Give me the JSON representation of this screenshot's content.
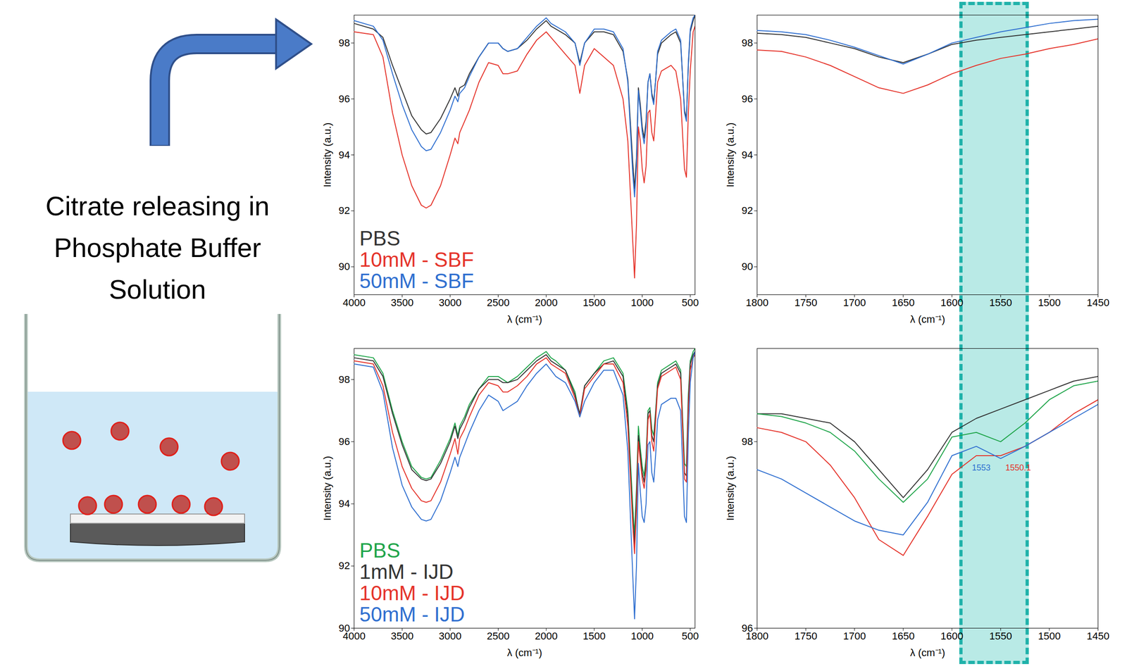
{
  "diagram": {
    "text": "Citrate releasing in Phosphate Buffer Solution"
  },
  "highlight_band": {
    "from": 1590,
    "to": 1525
  },
  "chart_data": [
    {
      "type": "line",
      "x_label": "λ (cm⁻¹)",
      "y_label": "Intensity (a.u.)",
      "xlim": [
        4000,
        450
      ],
      "xticks": [
        4000,
        3500,
        3000,
        2500,
        2000,
        1500,
        1000,
        500
      ],
      "ylim": [
        89,
        99
      ],
      "yticks": [
        90,
        92,
        94,
        96,
        98
      ],
      "legend": "bottom-left",
      "x": [
        4000,
        3800,
        3700,
        3600,
        3500,
        3400,
        3300,
        3250,
        3200,
        3100,
        3000,
        2950,
        2920,
        2900,
        2850,
        2800,
        2700,
        2600,
        2500,
        2450,
        2400,
        2300,
        2200,
        2100,
        2000,
        1950,
        1900,
        1800,
        1700,
        1650,
        1600,
        1500,
        1400,
        1300,
        1200,
        1150,
        1100,
        1080,
        1060,
        1040,
        1020,
        1000,
        980,
        960,
        940,
        920,
        900,
        880,
        860,
        840,
        800,
        700,
        650,
        600,
        560,
        540,
        520,
        500,
        470,
        450
      ],
      "series": [
        {
          "name": "PBS",
          "color": "#333333",
          "values": [
            98.7,
            98.5,
            98.2,
            97.2,
            96.3,
            95.4,
            94.9,
            94.75,
            94.8,
            95.3,
            96.0,
            96.4,
            96.1,
            96.4,
            96.5,
            96.9,
            97.5,
            98.0,
            98.0,
            97.8,
            97.7,
            97.8,
            98.1,
            98.5,
            98.8,
            98.6,
            98.5,
            98.3,
            98.0,
            97.3,
            98.0,
            98.4,
            98.4,
            98.3,
            97.7,
            96.7,
            93.8,
            92.8,
            93.9,
            96.4,
            95.8,
            95.0,
            94.6,
            95.2,
            96.6,
            96.9,
            96.2,
            95.9,
            96.7,
            97.6,
            98.0,
            98.3,
            98.4,
            98.0,
            95.6,
            95.3,
            97.2,
            98.4,
            98.8,
            99.0
          ]
        },
        {
          "name": "10mM - SBF",
          "color": "#e5332a",
          "values": [
            98.4,
            98.3,
            97.5,
            95.5,
            94.0,
            92.9,
            92.2,
            92.1,
            92.2,
            92.9,
            94.0,
            94.6,
            94.4,
            94.8,
            95.2,
            95.6,
            96.6,
            97.3,
            97.2,
            96.9,
            96.9,
            97.0,
            97.6,
            98.1,
            98.4,
            98.2,
            98.0,
            97.6,
            97.2,
            96.2,
            97.2,
            97.8,
            97.5,
            97.2,
            96.0,
            94.5,
            91.0,
            89.6,
            91.5,
            95.0,
            94.5,
            93.5,
            93.0,
            93.6,
            95.5,
            95.6,
            94.8,
            94.5,
            95.5,
            96.6,
            97.0,
            97.2,
            97.0,
            96.0,
            93.5,
            93.2,
            95.5,
            97.0,
            98.4,
            98.6
          ]
        },
        {
          "name": "50mM - SBF",
          "color": "#2f6fd0",
          "values": [
            98.8,
            98.6,
            98.1,
            96.9,
            95.8,
            94.9,
            94.3,
            94.15,
            94.2,
            94.8,
            95.6,
            96.1,
            95.9,
            96.2,
            96.4,
            96.8,
            97.5,
            98.0,
            98.0,
            97.8,
            97.7,
            97.8,
            98.2,
            98.6,
            98.9,
            98.7,
            98.6,
            98.4,
            98.0,
            97.2,
            98.0,
            98.5,
            98.5,
            98.4,
            97.8,
            96.6,
            93.4,
            92.5,
            93.6,
            96.3,
            95.6,
            94.8,
            94.4,
            95.0,
            96.6,
            96.9,
            96.1,
            95.8,
            96.7,
            97.7,
            98.1,
            98.4,
            98.5,
            98.1,
            95.5,
            95.2,
            97.3,
            98.5,
            98.9,
            99.0
          ]
        }
      ]
    },
    {
      "type": "line",
      "x_label": "λ (cm⁻¹)",
      "y_label": "Intensity (a.u.)",
      "xlim": [
        1800,
        1450
      ],
      "xticks": [
        1800,
        1750,
        1700,
        1650,
        1600,
        1550,
        1500,
        1450
      ],
      "ylim": [
        89,
        99
      ],
      "yticks": [
        90,
        92,
        94,
        96,
        98
      ],
      "x": [
        1800,
        1775,
        1750,
        1725,
        1700,
        1675,
        1650,
        1625,
        1600,
        1575,
        1550,
        1525,
        1500,
        1475,
        1450
      ],
      "series": [
        {
          "color": "#333333",
          "values": [
            98.35,
            98.3,
            98.2,
            98.0,
            97.8,
            97.5,
            97.3,
            97.6,
            97.95,
            98.1,
            98.2,
            98.3,
            98.4,
            98.5,
            98.6
          ]
        },
        {
          "color": "#e5332a",
          "values": [
            97.75,
            97.7,
            97.5,
            97.2,
            96.8,
            96.4,
            96.2,
            96.5,
            96.9,
            97.2,
            97.45,
            97.6,
            97.8,
            97.95,
            98.15
          ]
        },
        {
          "color": "#2f6fd0",
          "values": [
            98.45,
            98.4,
            98.3,
            98.1,
            97.85,
            97.55,
            97.25,
            97.6,
            98.0,
            98.2,
            98.4,
            98.55,
            98.7,
            98.8,
            98.85
          ]
        }
      ]
    },
    {
      "type": "line",
      "x_label": "λ (cm⁻¹)",
      "y_label": "Intensity (a.u.)",
      "xlim": [
        4000,
        450
      ],
      "xticks": [
        4000,
        3500,
        3000,
        2500,
        2000,
        1500,
        1000,
        500
      ],
      "ylim": [
        90,
        99
      ],
      "yticks": [
        90,
        92,
        94,
        96,
        98
      ],
      "legend": "bottom-left",
      "x": [
        4000,
        3800,
        3700,
        3600,
        3500,
        3400,
        3300,
        3250,
        3200,
        3100,
        3000,
        2950,
        2920,
        2900,
        2850,
        2800,
        2700,
        2600,
        2500,
        2450,
        2400,
        2300,
        2200,
        2100,
        2000,
        1950,
        1900,
        1800,
        1700,
        1650,
        1600,
        1500,
        1400,
        1300,
        1200,
        1150,
        1100,
        1080,
        1060,
        1040,
        1020,
        1000,
        980,
        960,
        940,
        920,
        900,
        880,
        860,
        840,
        800,
        700,
        650,
        600,
        560,
        540,
        520,
        500,
        470,
        450
      ],
      "series": [
        {
          "name": "PBS",
          "color": "#1fa54a",
          "values": [
            98.8,
            98.7,
            98.2,
            97.0,
            96.0,
            95.2,
            94.85,
            94.8,
            94.85,
            95.4,
            96.1,
            96.6,
            96.2,
            96.5,
            96.8,
            97.2,
            97.7,
            98.1,
            98.1,
            98.0,
            97.9,
            98.1,
            98.4,
            98.7,
            98.9,
            98.7,
            98.6,
            98.3,
            97.6,
            96.8,
            97.8,
            98.2,
            98.6,
            98.7,
            98.2,
            97.0,
            94.0,
            93.0,
            94.5,
            96.5,
            95.8,
            95.2,
            94.9,
            95.5,
            97.0,
            97.1,
            96.4,
            96.2,
            97.0,
            97.9,
            98.3,
            98.5,
            98.6,
            98.3,
            95.3,
            95.2,
            97.5,
            98.6,
            98.9,
            99.0
          ]
        },
        {
          "name": "1mM - IJD",
          "color": "#333333",
          "values": [
            98.7,
            98.6,
            98.1,
            96.9,
            95.9,
            95.1,
            94.8,
            94.75,
            94.8,
            95.3,
            96.0,
            96.5,
            96.1,
            96.4,
            96.7,
            97.1,
            97.7,
            98.0,
            98.0,
            97.9,
            97.9,
            98.0,
            98.3,
            98.6,
            98.8,
            98.6,
            98.5,
            98.3,
            97.5,
            96.9,
            97.8,
            98.2,
            98.5,
            98.6,
            98.1,
            96.8,
            93.6,
            92.7,
            94.2,
            96.2,
            95.6,
            95.0,
            94.7,
            95.3,
            96.9,
            97.0,
            96.2,
            96.0,
            96.9,
            97.8,
            98.2,
            98.4,
            98.5,
            98.2,
            95.0,
            94.9,
            97.3,
            98.5,
            98.8,
            98.9
          ]
        },
        {
          "name": "10mM - IJD",
          "color": "#e5332a",
          "values": [
            98.6,
            98.5,
            97.8,
            96.3,
            95.2,
            94.5,
            94.1,
            94.05,
            94.1,
            94.7,
            95.6,
            96.1,
            95.6,
            96.1,
            96.4,
            96.8,
            97.5,
            97.9,
            97.8,
            97.6,
            97.6,
            97.8,
            98.1,
            98.5,
            98.7,
            98.5,
            98.4,
            98.2,
            97.4,
            96.8,
            97.7,
            98.1,
            98.5,
            98.5,
            97.9,
            96.5,
            93.4,
            92.4,
            93.8,
            96.0,
            95.4,
            94.8,
            94.5,
            95.1,
            96.7,
            96.9,
            96.0,
            95.7,
            96.7,
            97.7,
            98.1,
            98.3,
            98.4,
            98.0,
            94.8,
            94.7,
            97.0,
            98.3,
            98.7,
            98.8
          ]
        },
        {
          "name": "50mM - IJD",
          "color": "#2f6fd0",
          "values": [
            98.5,
            98.4,
            97.6,
            95.8,
            94.6,
            93.9,
            93.5,
            93.45,
            93.5,
            94.1,
            95.0,
            95.5,
            95.2,
            95.5,
            95.9,
            96.3,
            97.0,
            97.5,
            97.3,
            97.0,
            97.1,
            97.3,
            97.8,
            98.2,
            98.5,
            98.3,
            98.1,
            97.9,
            97.3,
            96.8,
            97.3,
            97.9,
            98.3,
            98.3,
            97.5,
            95.7,
            91.8,
            90.3,
            92.0,
            95.3,
            94.4,
            93.6,
            93.4,
            94.0,
            95.9,
            96.0,
            95.0,
            94.7,
            95.6,
            96.7,
            97.2,
            97.4,
            97.4,
            97.0,
            93.6,
            93.4,
            96.2,
            97.9,
            98.7,
            98.9
          ]
        }
      ]
    },
    {
      "type": "line",
      "x_label": "λ (cm⁻¹)",
      "y_label": "Intensity (a.u.)",
      "xlim": [
        1800,
        1450
      ],
      "xticks": [
        1800,
        1750,
        1700,
        1650,
        1600,
        1550,
        1500,
        1450
      ],
      "ylim": [
        96,
        99
      ],
      "yticks": [
        96,
        98
      ],
      "x": [
        1800,
        1775,
        1750,
        1725,
        1700,
        1675,
        1650,
        1625,
        1600,
        1575,
        1550,
        1525,
        1500,
        1475,
        1450
      ],
      "series": [
        {
          "color": "#333333",
          "values": [
            98.3,
            98.3,
            98.25,
            98.2,
            98.0,
            97.7,
            97.4,
            97.7,
            98.1,
            98.25,
            98.35,
            98.45,
            98.55,
            98.65,
            98.7
          ]
        },
        {
          "color": "#1fa54a",
          "values": [
            98.3,
            98.27,
            98.2,
            98.1,
            97.9,
            97.6,
            97.35,
            97.6,
            98.05,
            98.1,
            98.0,
            98.2,
            98.45,
            98.6,
            98.65
          ]
        },
        {
          "color": "#e5332a",
          "values": [
            98.15,
            98.1,
            98.0,
            97.75,
            97.4,
            96.95,
            96.78,
            97.2,
            97.65,
            97.85,
            97.85,
            97.95,
            98.1,
            98.3,
            98.45
          ]
        },
        {
          "color": "#2f6fd0",
          "values": [
            97.7,
            97.6,
            97.45,
            97.3,
            97.15,
            97.05,
            97.0,
            97.35,
            97.85,
            97.95,
            97.82,
            97.95,
            98.1,
            98.25,
            98.4
          ]
        }
      ],
      "annotations": [
        {
          "text": "1553",
          "x": 1570,
          "y": 97.72,
          "color": "#2f6fd0"
        },
        {
          "text": "1550.1",
          "x": 1532,
          "y": 97.72,
          "color": "#e5332a"
        }
      ]
    }
  ]
}
